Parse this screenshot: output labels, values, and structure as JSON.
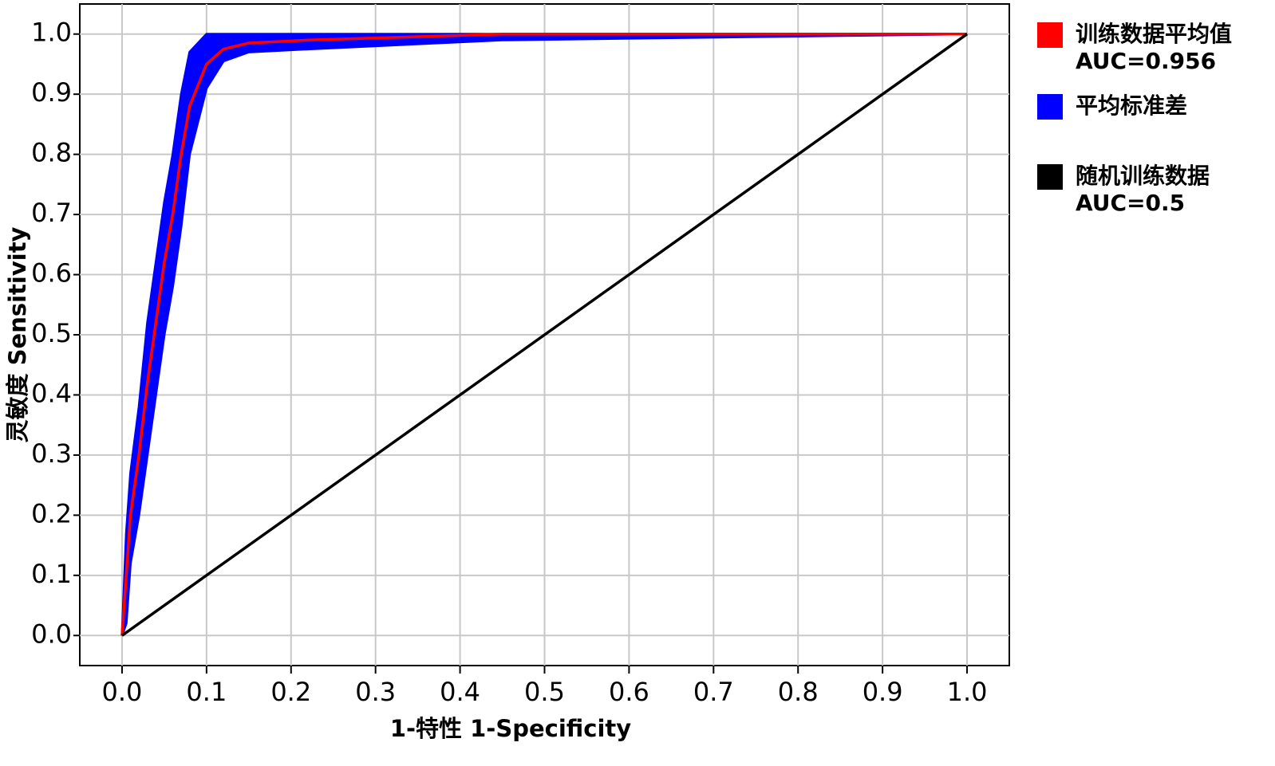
{
  "chart_data": {
    "type": "roc",
    "x_label": "1-特性 1-Specificity",
    "y_label": "灵敏度 Sensitivity",
    "xlim": [
      -0.05,
      1.05
    ],
    "ylim": [
      -0.05,
      1.05
    ],
    "xticks": [
      {
        "value": 0,
        "label": "0.0"
      },
      0.1,
      0.2,
      0.3,
      0.4,
      0.5,
      0.6,
      0.7,
      0.8,
      0.9,
      {
        "value": 1,
        "label": "1.0"
      }
    ],
    "yticks": [
      {
        "value": 0,
        "label": "0.0"
      },
      0.1,
      0.2,
      0.3,
      0.4,
      0.5,
      0.6,
      0.7,
      0.8,
      0.9,
      {
        "value": 1,
        "label": "1.0"
      }
    ],
    "grid": true,
    "legend": "outside-right",
    "series": [
      {
        "name": "平均标准差",
        "kind": "band",
        "color": "#0000ff",
        "x": [
          0,
          0.005,
          0.01,
          0.02,
          0.03,
          0.04,
          0.05,
          0.06,
          0.07,
          0.08,
          0.1,
          0.12,
          0.15,
          0.22,
          0.45,
          1
        ],
        "upper": [
          0,
          0.17,
          0.27,
          0.38,
          0.52,
          0.62,
          0.72,
          0.8,
          0.9,
          0.97,
          1,
          1,
          1,
          1,
          1,
          1
        ],
        "lower": [
          0,
          0.02,
          0.12,
          0.2,
          0.3,
          0.4,
          0.5,
          0.58,
          0.68,
          0.8,
          0.91,
          0.955,
          0.97,
          0.975,
          0.99,
          1
        ]
      },
      {
        "name": "训练数据平均值",
        "legend_note": "AUC=0.956",
        "kind": "line",
        "color": "#ff0000",
        "x": [
          0,
          0.005,
          0.01,
          0.02,
          0.03,
          0.04,
          0.05,
          0.06,
          0.07,
          0.08,
          0.1,
          0.12,
          0.15,
          0.22,
          0.45,
          1
        ],
        "values": [
          0,
          0.1,
          0.2,
          0.3,
          0.42,
          0.52,
          0.62,
          0.7,
          0.8,
          0.88,
          0.95,
          0.975,
          0.985,
          0.99,
          1,
          1
        ]
      },
      {
        "name": "随机训练数据",
        "legend_note": "AUC=0.5",
        "kind": "line",
        "color": "#000000",
        "x": [
          0,
          1
        ],
        "values": [
          0,
          1
        ]
      }
    ],
    "legend_order": [
      1,
      0,
      2
    ]
  }
}
